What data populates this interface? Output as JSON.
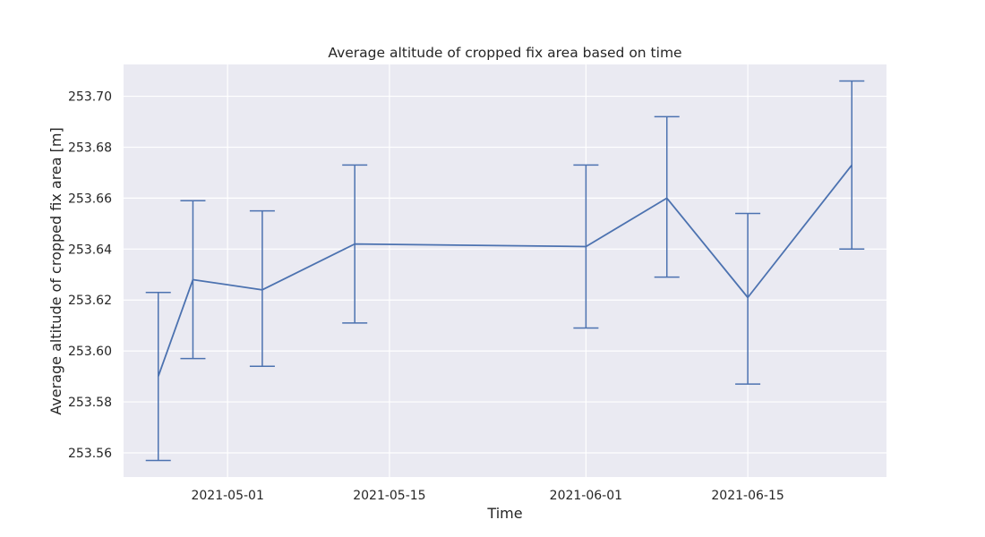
{
  "chart_data": {
    "type": "line",
    "title": "Average altitude of cropped fix area based on time",
    "xlabel": "Time",
    "ylabel": "Average altitude of cropped fix area [m]",
    "x_type": "date",
    "xlim": [
      "2021-04-22",
      "2021-06-27"
    ],
    "ylim": [
      253.5505,
      253.7125
    ],
    "x_ticks": [
      "2021-05-01",
      "2021-05-15",
      "2021-06-01",
      "2021-06-15"
    ],
    "y_ticks": [
      253.56,
      253.58,
      253.6,
      253.62,
      253.64,
      253.66,
      253.68,
      253.7
    ],
    "y_tick_labels": [
      "253.56",
      "253.58",
      "253.60",
      "253.62",
      "253.64",
      "253.66",
      "253.68",
      "253.70"
    ],
    "grid": true,
    "colors": {
      "background": "#eaeaf2",
      "grid": "#ffffff",
      "line": "#4c72b0"
    },
    "series": [
      {
        "x": [
          "2021-04-25",
          "2021-04-28",
          "2021-05-04",
          "2021-05-12",
          "2021-06-01",
          "2021-06-08",
          "2021-06-15",
          "2021-06-24"
        ],
        "y": [
          253.59,
          253.628,
          253.624,
          253.642,
          253.641,
          253.66,
          253.621,
          253.673
        ],
        "error_low": [
          253.557,
          253.597,
          253.594,
          253.611,
          253.609,
          253.629,
          253.587,
          253.64
        ],
        "error_high": [
          253.623,
          253.659,
          253.655,
          253.673,
          253.673,
          253.692,
          253.654,
          253.706
        ]
      }
    ]
  }
}
